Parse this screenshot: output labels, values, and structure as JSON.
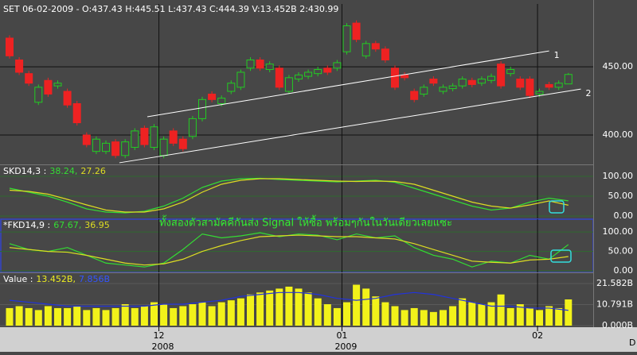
{
  "chart_data": [
    {
      "type": "candlestick",
      "title": "SET 06-02-2009 - O:437.43 H:445.51 L:437.43 C:444.39 V:13.452B 2:430.99",
      "up_color": "#22cc22",
      "down_color": "#ee2222",
      "open": [
        471,
        455,
        445,
        424,
        440,
        436,
        432,
        423,
        400,
        388,
        388,
        395,
        385,
        391,
        405,
        391,
        385,
        403,
        397,
        399,
        412,
        430,
        423,
        432,
        435,
        449,
        455,
        448,
        449,
        432,
        441,
        443,
        445,
        449,
        449,
        461,
        482,
        458,
        467,
        463,
        449,
        444,
        432,
        430,
        441,
        432,
        434,
        436,
        440,
        438,
        440,
        452,
        445,
        441,
        441,
        430,
        437,
        435,
        437.43
      ],
      "high": [
        473,
        457,
        447,
        437,
        442,
        440,
        434,
        425,
        402,
        399,
        396,
        397,
        397,
        405,
        407,
        408,
        399,
        405,
        399,
        414,
        428,
        432,
        429,
        440,
        448,
        457,
        457,
        454,
        451,
        444,
        446,
        448,
        450,
        451,
        455,
        482,
        484,
        469,
        469,
        465,
        451,
        446,
        434,
        437,
        443,
        437,
        438,
        443,
        442,
        443,
        445,
        454,
        450,
        443,
        443,
        434,
        439,
        440,
        445.51
      ],
      "low": [
        456,
        444,
        436,
        422,
        428,
        434,
        420,
        407,
        391,
        386,
        386,
        383,
        383,
        389,
        391,
        389,
        383,
        392,
        388,
        397,
        410,
        424,
        421,
        430,
        433,
        447,
        447,
        446,
        433,
        430,
        439,
        441,
        443,
        444,
        447,
        459,
        468,
        456,
        461,
        453,
        433,
        440,
        424,
        428,
        436,
        430,
        432,
        434,
        435,
        436,
        438,
        434,
        443,
        433,
        427,
        428,
        433,
        433,
        437.43
      ],
      "close": [
        458,
        446,
        438,
        435,
        430,
        438,
        422,
        409,
        393,
        397,
        394,
        385,
        395,
        403,
        393,
        406,
        397,
        394,
        390,
        412,
        426,
        426,
        427,
        438,
        446,
        455,
        449,
        452,
        435,
        442,
        444,
        446,
        448,
        446,
        453,
        480,
        470,
        467,
        463,
        455,
        435,
        442,
        426,
        435,
        438,
        435,
        436,
        441,
        437,
        441,
        443,
        436,
        448,
        435,
        429,
        432,
        435,
        438,
        444.39
      ],
      "trendlines": [
        {
          "label": "1",
          "start": [
            14.3,
            413.4
          ],
          "end": [
            56,
            461.6
          ]
        },
        {
          "label": "2",
          "start": [
            11.4,
            379.7
          ],
          "end": [
            59.3,
            433.7
          ]
        }
      ],
      "ylim": [
        378.5,
        496
      ],
      "yticks": [
        {
          "value": 450,
          "label": "450.00"
        },
        {
          "value": 400,
          "label": "400.00"
        }
      ],
      "xticks": [
        {
          "value": 15.5,
          "label": "12"
        },
        {
          "value": 34.5,
          "label": "01"
        },
        {
          "value": 54.8,
          "label": "02"
        }
      ],
      "years": [
        {
          "value": 15.5,
          "label": "2008"
        },
        {
          "value": 34.5,
          "label": "2009"
        }
      ],
      "x_unit": "D"
    },
    {
      "type": "line",
      "header": [
        {
          "text": "SKD14,3 :",
          "color": "#ffffff"
        },
        {
          "text": "38.24,",
          "color": "#33dd33"
        },
        {
          "text": "27.26",
          "color": "#dddd22"
        }
      ],
      "series": [
        {
          "color": "#33dd33",
          "values": [
            70,
            60,
            50,
            35,
            18,
            10,
            8,
            12,
            25,
            45,
            72,
            88,
            94,
            95,
            92,
            90,
            88,
            86,
            88,
            90,
            85,
            70,
            55,
            40,
            25,
            15,
            20,
            35,
            45,
            38.24
          ]
        },
        {
          "color": "#dddd22",
          "values": [
            65,
            62,
            55,
            42,
            28,
            15,
            10,
            10,
            18,
            35,
            60,
            80,
            90,
            94,
            94,
            92,
            90,
            88,
            87,
            88,
            87,
            80,
            65,
            50,
            35,
            25,
            20,
            28,
            38,
            27.26
          ]
        }
      ],
      "ylim": [
        -6,
        128
      ],
      "yticks": [
        {
          "value": 100,
          "label": "100.00"
        },
        {
          "value": 50,
          "label": "50.00"
        },
        {
          "value": 0,
          "label": "0.00"
        }
      ]
    },
    {
      "type": "line",
      "header": [
        {
          "text": "*FKD14,9 :",
          "color": "#ffffff"
        },
        {
          "text": "67.67,",
          "color": "#33dd33"
        },
        {
          "text": "36.95",
          "color": "#dddd22"
        }
      ],
      "annotation": "ทั้งสองตัวสามัคคีกันส่ง Signal ให้ซื้อ พร้อมๆกันในวันเดียวเลยแซะ",
      "series": [
        {
          "color": "#33dd33",
          "values": [
            70,
            55,
            50,
            60,
            40,
            20,
            15,
            10,
            20,
            55,
            95,
            85,
            90,
            98,
            88,
            95,
            92,
            80,
            95,
            85,
            90,
            60,
            40,
            30,
            10,
            25,
            20,
            40,
            30,
            67.67
          ]
        },
        {
          "color": "#dddd22",
          "values": [
            60,
            55,
            50,
            48,
            40,
            30,
            20,
            15,
            18,
            30,
            50,
            65,
            78,
            88,
            90,
            92,
            90,
            88,
            88,
            85,
            82,
            70,
            55,
            40,
            25,
            22,
            20,
            28,
            30,
            36.95
          ]
        }
      ],
      "ylim": [
        -4,
        133
      ],
      "yticks": [
        {
          "value": 100,
          "label": "100.00"
        },
        {
          "value": 50,
          "label": "50.00"
        },
        {
          "value": 0,
          "label": "0.00"
        }
      ]
    },
    {
      "type": "bar",
      "header": [
        {
          "text": "Value :",
          "color": "#ffffff"
        },
        {
          "text": "13.452B,",
          "color": "#eeee22"
        },
        {
          "text": "7.856B",
          "color": "#3355ff"
        }
      ],
      "color": "#f2f21a",
      "line_color": "#2233dd",
      "values": [
        9,
        10,
        9,
        8,
        10,
        9,
        9,
        10,
        8,
        9,
        8,
        9,
        11,
        9,
        10,
        12,
        11,
        9,
        10,
        11,
        12,
        10,
        12,
        13,
        14,
        16,
        17,
        18,
        19,
        20,
        19,
        17,
        14,
        11,
        9,
        12,
        21,
        19,
        15,
        12,
        10,
        8,
        9,
        8,
        7,
        8,
        10,
        14,
        12,
        11,
        12,
        16,
        9,
        11,
        9,
        8,
        10,
        9,
        13.452
      ],
      "average": [
        13,
        12,
        11,
        10,
        10,
        10,
        10,
        10,
        11,
        11,
        12,
        13,
        15,
        16,
        17,
        17,
        16,
        14,
        13,
        14,
        16,
        17,
        16,
        14,
        12,
        10,
        10,
        9,
        9,
        7.856
      ],
      "ylim": [
        -0.8,
        26.9
      ],
      "yticks": [
        {
          "value": 21.582,
          "label": "21.582B"
        },
        {
          "value": 10.791,
          "label": "10.791B"
        },
        {
          "value": 0,
          "label": "0.000B"
        }
      ]
    }
  ]
}
